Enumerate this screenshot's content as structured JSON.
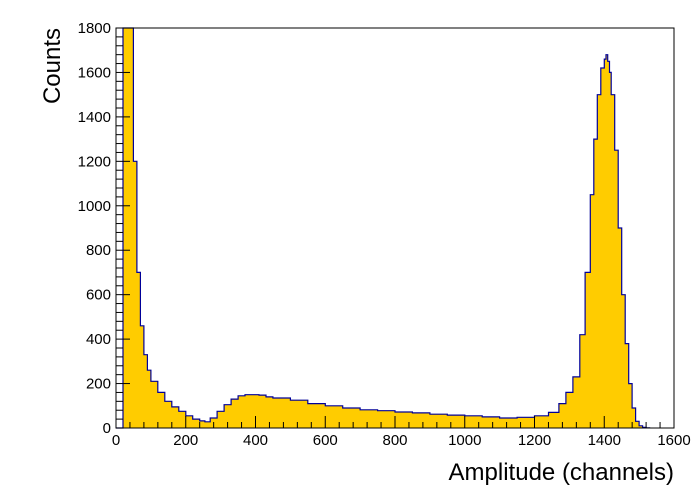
{
  "chart_data": {
    "type": "area",
    "title": "",
    "xlabel": "Amplitude (channels)",
    "ylabel": "Counts",
    "xlim": [
      0,
      1600
    ],
    "ylim": [
      0,
      1800
    ],
    "x_ticks": [
      0,
      200,
      400,
      600,
      800,
      1000,
      1200,
      1400,
      1600
    ],
    "y_ticks": [
      0,
      200,
      400,
      600,
      800,
      1000,
      1200,
      1400,
      1600,
      1800
    ],
    "grid": false,
    "legend": "none",
    "colors": {
      "fill": "#ffcc00",
      "line": "#000099",
      "axis": "#000000"
    },
    "series": [
      {
        "x": [
          0,
          10,
          20,
          30,
          40,
          50,
          60,
          70,
          80,
          90,
          100,
          120,
          140,
          160,
          180,
          200,
          220,
          240,
          255,
          270,
          290,
          310,
          330,
          350,
          370,
          390,
          410,
          430,
          450,
          500,
          550,
          600,
          650,
          700,
          750,
          800,
          850,
          900,
          950,
          1000,
          1050,
          1100,
          1150,
          1200,
          1240,
          1270,
          1290,
          1310,
          1330,
          1345,
          1360,
          1370,
          1380,
          1390,
          1400,
          1405,
          1410,
          1415,
          1420,
          1430,
          1440,
          1450,
          1460,
          1470,
          1480,
          1490,
          1500,
          1510,
          1520,
          1530
        ],
        "y": [
          0,
          0,
          1800,
          1800,
          1800,
          1200,
          700,
          460,
          330,
          260,
          210,
          160,
          120,
          95,
          75,
          55,
          40,
          32,
          28,
          45,
          75,
          105,
          130,
          145,
          150,
          150,
          148,
          140,
          135,
          125,
          110,
          100,
          90,
          82,
          78,
          72,
          68,
          62,
          58,
          55,
          50,
          45,
          48,
          55,
          70,
          110,
          160,
          230,
          420,
          700,
          1050,
          1300,
          1500,
          1620,
          1660,
          1680,
          1650,
          1600,
          1500,
          1250,
          900,
          600,
          380,
          200,
          90,
          30,
          10,
          3,
          1,
          0
        ]
      }
    ]
  }
}
